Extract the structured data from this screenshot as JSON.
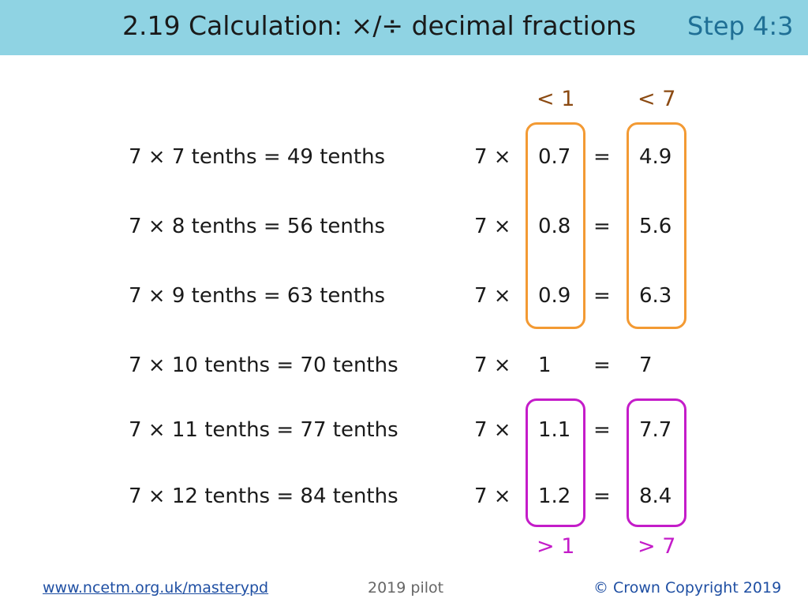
{
  "header": {
    "title": "2.19 Calculation: ×/÷ decimal fractions",
    "step": "Step 4:3"
  },
  "rows": [
    {
      "statement": "7 × 7 tenths = 49 tenths",
      "multiplier": "7 ×",
      "factor": "0.7",
      "equals": "=",
      "product": "4.9"
    },
    {
      "statement": "7 × 8 tenths = 56 tenths",
      "multiplier": "7 ×",
      "factor": "0.8",
      "equals": "=",
      "product": "5.6"
    },
    {
      "statement": "7 × 9 tenths = 63 tenths",
      "multiplier": "7 ×",
      "factor": "0.9",
      "equals": "=",
      "product": "6.3"
    },
    {
      "statement": "7 × 10 tenths = 70 tenths",
      "multiplier": "7 ×",
      "factor": "1",
      "equals": "=",
      "product": "7"
    },
    {
      "statement": "7 × 11 tenths = 77 tenths",
      "multiplier": "7 ×",
      "factor": "1.1",
      "equals": "=",
      "product": "7.7"
    },
    {
      "statement": "7 × 12 tenths = 84 tenths",
      "multiplier": "7 ×",
      "factor": "1.2",
      "equals": "=",
      "product": "8.4"
    }
  ],
  "annotations": {
    "factor_less": "< 1",
    "product_less": "< 7",
    "factor_greater": "> 1",
    "product_greater": "> 7"
  },
  "colors": {
    "header_bg": "#8fd3e3",
    "less_than": "#f39a33",
    "less_label": "#8b4a12",
    "greater_than": "#c41cc9"
  },
  "footer": {
    "link": "www.ncetm.org.uk/masterypd",
    "pilot": "2019 pilot",
    "copyright": "© Crown Copyright 2019"
  }
}
